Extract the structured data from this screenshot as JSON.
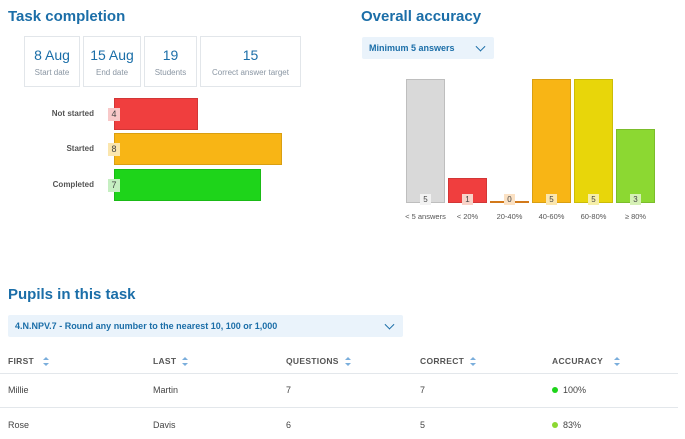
{
  "task_completion": {
    "title": "Task completion",
    "stats": [
      {
        "value": "8 Aug",
        "label": "Start date"
      },
      {
        "value": "15 Aug",
        "label": "End date"
      },
      {
        "value": "19",
        "label": "Students"
      },
      {
        "value": "15",
        "label": "Correct answer target"
      }
    ],
    "bars": [
      {
        "label": "Not started",
        "value": 4,
        "color": "#f03e3e",
        "badge_color": "#f8c9c9"
      },
      {
        "label": "Started",
        "value": 8,
        "color": "#f8b515",
        "badge_color": "#fbe6ae"
      },
      {
        "label": "Completed",
        "value": 7,
        "color": "#1ed41a",
        "badge_color": "#c6efc2"
      }
    ],
    "max": 8
  },
  "overall_accuracy": {
    "title": "Overall accuracy",
    "dropdown_label": "Minimum 5 answers",
    "bars": [
      {
        "label": "< 5 answers",
        "value": 5,
        "color": "#d9d9d9",
        "badge_color": "#f2f2f2"
      },
      {
        "label": "< 20%",
        "value": 1,
        "color": "#f03e3e",
        "badge_color": "#f8d3c9"
      },
      {
        "label": "20-40%",
        "value": 0,
        "color": "#f08a1e",
        "badge_color": "#fbe1c3"
      },
      {
        "label": "40-60%",
        "value": 5,
        "color": "#f8b515",
        "badge_color": "#fbe6ae"
      },
      {
        "label": "60-80%",
        "value": 5,
        "color": "#e8d60a",
        "badge_color": "#f6efa8"
      },
      {
        "label": "≥ 80%",
        "value": 3,
        "color": "#8cd832",
        "badge_color": "#d6f1b6"
      }
    ],
    "max": 5
  },
  "pupils": {
    "title": "Pupils in this task",
    "dropdown_label": "4.N.NPV.7 - Round any number to the nearest 10, 100 or 1,000",
    "columns": [
      "FIRST",
      "LAST",
      "QUESTIONS",
      "CORRECT",
      "ACCURACY"
    ],
    "rows": [
      {
        "first": "Millie",
        "last": "Martin",
        "questions": "7",
        "correct": "7",
        "accuracy": "100%",
        "dot_color": "#1ed41a"
      },
      {
        "first": "Rose",
        "last": "Davis",
        "questions": "6",
        "correct": "5",
        "accuracy": "83%",
        "dot_color": "#8cd832"
      }
    ]
  }
}
